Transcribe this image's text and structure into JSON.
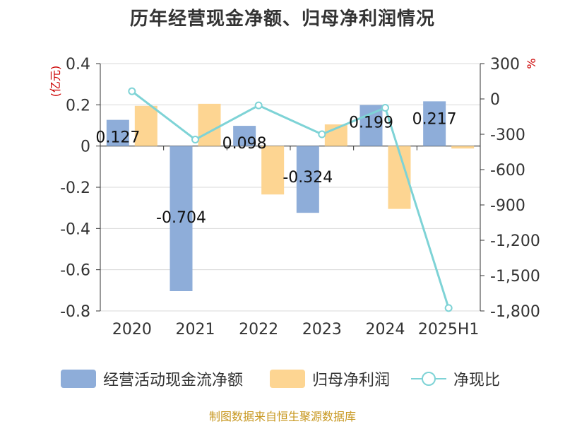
{
  "title": "历年经营现金净额、归母净利润情况",
  "source": "制图数据来自恒生聚源数据库",
  "colors": {
    "ocf": "#8eadd9",
    "profit": "#fdd592",
    "ratio": "#7ed3d6",
    "axis_unit": "#cc0000",
    "source": "#c7971f"
  },
  "chart_data": {
    "type": "bar",
    "categories": [
      "2020",
      "2021",
      "2022",
      "2023",
      "2024",
      "2025H1"
    ],
    "left_axis": {
      "unit": "(亿元)",
      "ylim": [
        -0.8,
        0.4
      ],
      "ticks": [
        0.4,
        0.2,
        0,
        -0.2,
        -0.4,
        -0.6,
        -0.8
      ],
      "tick_labels": [
        "0.4",
        "0.2",
        "0",
        "-0.2",
        "-0.4",
        "-0.6",
        "-0.8"
      ]
    },
    "right_axis": {
      "unit": "%",
      "ylim": [
        -1800,
        300
      ],
      "ticks": [
        300,
        0,
        -300,
        -600,
        -900,
        -1200,
        -1500,
        -1800
      ],
      "tick_labels": [
        "300",
        "0",
        "-300",
        "-600",
        "-900",
        "-1,200",
        "-1,500",
        "-1,800"
      ]
    },
    "grid": true,
    "legend_position": "bottom",
    "series": [
      {
        "name": "经营活动现金流净额",
        "kind": "bar",
        "axis": "left",
        "values": [
          0.127,
          -0.704,
          0.098,
          -0.324,
          0.199,
          0.217
        ],
        "labels": [
          "0.127",
          "-0.704",
          "0.098",
          "-0.324",
          "0.199",
          "0.217"
        ]
      },
      {
        "name": "归母净利润",
        "kind": "bar",
        "axis": "left",
        "values": [
          0.195,
          0.205,
          -0.235,
          0.105,
          -0.305,
          -0.012
        ]
      },
      {
        "name": "净现比",
        "kind": "line",
        "axis": "right",
        "values": [
          65,
          -345,
          -55,
          -300,
          -75,
          -1775
        ]
      }
    ]
  }
}
